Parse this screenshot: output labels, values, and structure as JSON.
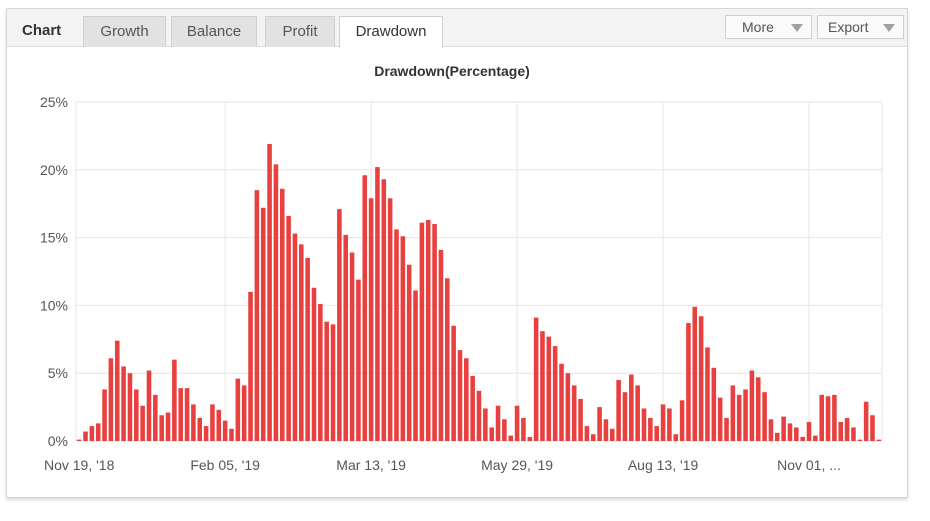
{
  "header": {
    "chart_label": "Chart",
    "tabs": [
      {
        "label": "Growth",
        "active": false
      },
      {
        "label": "Balance",
        "active": false
      },
      {
        "label": "Profit",
        "active": false
      },
      {
        "label": "Drawdown",
        "active": true
      }
    ],
    "more_label": "More",
    "export_label": "Export"
  },
  "colors": {
    "bar": "#e8403f",
    "grid": "#e6e6e6",
    "axis_text": "#555555",
    "title_text": "#333333"
  },
  "chart_data": {
    "type": "bar",
    "title": "Drawdown(Percentage)",
    "xlabel": "",
    "ylabel": "",
    "ylim": [
      0,
      25
    ],
    "y_ticks": [
      0,
      5,
      10,
      15,
      20,
      25
    ],
    "y_tick_labels": [
      "0%",
      "5%",
      "10%",
      "15%",
      "20%",
      "25%"
    ],
    "x_tick_labels": [
      {
        "label": "Nov 19, '18",
        "index": 0
      },
      {
        "label": "Feb 05, '19",
        "index": 23
      },
      {
        "label": "Mar 13, '19",
        "index": 46
      },
      {
        "label": "May 29, '19",
        "index": 69
      },
      {
        "label": "Aug 13, '19",
        "index": 92
      },
      {
        "label": "Nov 01, ...",
        "index": 115
      }
    ],
    "grid": true,
    "values": [
      0.1,
      0.7,
      1.1,
      1.3,
      3.8,
      6.1,
      7.4,
      5.5,
      5.0,
      3.8,
      2.6,
      5.2,
      3.4,
      1.9,
      2.1,
      6.0,
      3.9,
      3.9,
      2.7,
      1.7,
      1.1,
      2.7,
      2.3,
      1.5,
      0.9,
      4.6,
      4.1,
      11.0,
      18.5,
      17.2,
      21.9,
      20.4,
      18.6,
      16.6,
      15.3,
      14.5,
      13.5,
      11.3,
      10.1,
      8.8,
      8.6,
      17.1,
      15.2,
      13.9,
      11.9,
      19.6,
      17.9,
      20.2,
      19.3,
      17.9,
      15.6,
      15.1,
      13.0,
      11.1,
      16.1,
      16.3,
      16.0,
      14.1,
      12.0,
      8.5,
      6.7,
      6.1,
      4.8,
      3.7,
      2.4,
      1.0,
      2.6,
      1.6,
      0.4,
      2.6,
      1.7,
      0.3,
      9.1,
      8.1,
      7.7,
      7.0,
      5.7,
      5.0,
      4.1,
      3.1,
      1.1,
      0.5,
      2.5,
      1.6,
      0.9,
      4.5,
      3.6,
      4.9,
      4.1,
      2.4,
      1.7,
      1.1,
      2.7,
      2.4,
      0.5,
      3.0,
      8.7,
      9.9,
      9.2,
      6.9,
      5.4,
      3.2,
      1.7,
      4.1,
      3.4,
      3.8,
      5.2,
      4.7,
      3.6,
      1.6,
      0.6,
      1.8,
      1.3,
      1.0,
      0.3,
      1.4,
      0.4,
      3.4,
      3.3,
      3.4,
      1.4,
      1.7,
      1.0,
      0.1,
      2.9,
      1.9,
      0.1
    ]
  }
}
